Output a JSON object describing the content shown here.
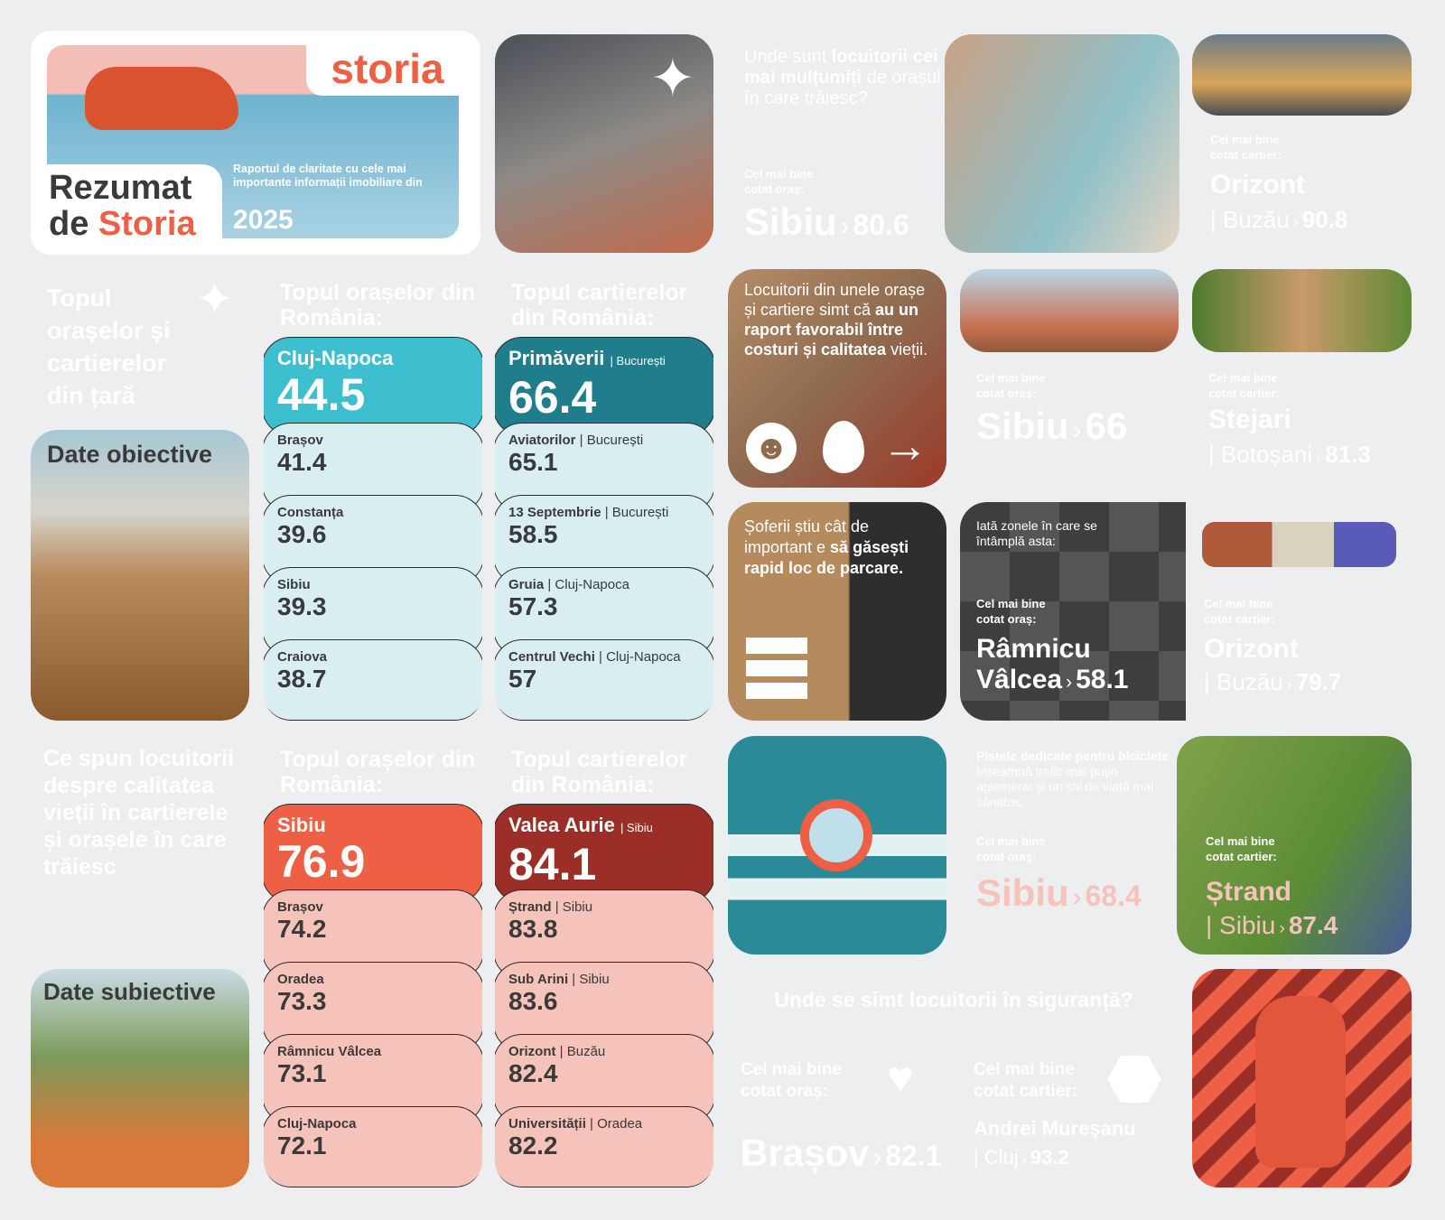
{
  "hero": {
    "brand": "storia",
    "title_line1": "Rezumat",
    "title_line2_a": "de ",
    "title_line2_b": "Storia",
    "subtitle": "Raportul de claritate cu cele mai importante informații imobiliare din",
    "year": "2025"
  },
  "colors": {
    "coral": "#ee6045",
    "dark_red": "#9b2f27",
    "teal": "#3ebfd0",
    "dark_teal": "#1f7d8c",
    "dark_gray": "#3e3e41",
    "light_teal": "#d8eef1",
    "light_pink": "#f6c3ba"
  },
  "happy": {
    "question_a": "Unde sunt ",
    "question_b": "locuitorii cei mai mulțumiți",
    "question_c": " de orașul în care trăiesc?",
    "city_label": "Cel mai bine cotat oraș:",
    "city": "Sibiu",
    "city_score": "80.6"
  },
  "happy_nb": {
    "label": "Cel mai bine cotat cartier:",
    "name": "Orizont",
    "city": "| Buzău",
    "score": "90.8"
  },
  "objective": {
    "title": "Topul orașelor și cartierelor din țară",
    "photo_label": "Date obiective",
    "cities": {
      "title": "Topul orașelor din România:",
      "items": [
        {
          "name": "Cluj-Napoca",
          "score": "44.5"
        },
        {
          "name": "Brașov",
          "score": "41.4"
        },
        {
          "name": "Constanța",
          "score": "39.6"
        },
        {
          "name": "Sibiu",
          "score": "39.3"
        },
        {
          "name": "Craiova",
          "score": "38.7"
        }
      ]
    },
    "neighborhoods": {
      "title": "Topul cartierelor din România:",
      "items": [
        {
          "name": "Primăverii",
          "city": "| București",
          "score": "66.4"
        },
        {
          "name": "Aviatorilor",
          "city": "| București",
          "score": "65.1"
        },
        {
          "name": "13 Septembrie",
          "city": "| București",
          "score": "58.5"
        },
        {
          "name": "Gruia",
          "city": "| Cluj-Napoca",
          "score": "57.3"
        },
        {
          "name": "Centrul Vechi",
          "city": "| Cluj-Napoca",
          "score": "57"
        }
      ]
    }
  },
  "cost": {
    "text_a": "Locuitorii din unele orașe și cartiere simt că ",
    "text_b": "au un raport favorabil între costuri și calitatea",
    "text_c": " vieții.",
    "city_label": "Cel mai bine cotat oraș:",
    "city": "Sibiu",
    "city_score": "66",
    "nb_label": "Cel mai bine cotat cartier:",
    "nb": "Stejari",
    "nb_city": "| Botoșani",
    "nb_score": "81.3"
  },
  "parking": {
    "text_a": "Șoferii știu cât de important e ",
    "text_b": "să găsești rapid loc de parcare.",
    "intro": "Iată zonele în care se întâmplă asta:",
    "city_label": "Cel mai bine cotat oraș:",
    "city_line1": "Râmnicu",
    "city_line2": "Vâlcea",
    "city_score": "58.1",
    "nb_label": "Cel mai bine cotat cartier:",
    "nb": "Orizont",
    "nb_city": "| Buzău",
    "nb_score": "79.7"
  },
  "subjective": {
    "title": "Ce spun locuitorii despre calitatea vieții în cartierele și orașele în care trăiesc",
    "photo_label": "Date subiective",
    "cities": {
      "title": "Topul orașelor din România:",
      "items": [
        {
          "name": "Sibiu",
          "score": "76.9"
        },
        {
          "name": "Brașov",
          "score": "74.2"
        },
        {
          "name": "Oradea",
          "score": "73.3"
        },
        {
          "name": "Râmnicu Vâlcea",
          "score": "73.1"
        },
        {
          "name": "Cluj-Napoca",
          "score": "72.1"
        }
      ]
    },
    "neighborhoods": {
      "title": "Topul cartierelor din România:",
      "items": [
        {
          "name": "Valea Aurie",
          "city": "| Sibiu",
          "score": "84.1"
        },
        {
          "name": "Ștrand",
          "city": "| Sibiu",
          "score": "83.8"
        },
        {
          "name": "Sub Arini",
          "city": "| Sibiu",
          "score": "83.6"
        },
        {
          "name": "Orizont",
          "city": "| Buzău",
          "score": "82.4"
        },
        {
          "name": "Universității",
          "city": "| Oradea",
          "score": "82.2"
        }
      ]
    }
  },
  "bike": {
    "text_a": "Pistele dedicate pentru biciclete",
    "text_b": " înseamnă trafic mai puțin aglomerat și un stil de viață mai sănătos.",
    "city_label": "Cel mai bine cotat oraș:",
    "city": "Sibiu",
    "city_score": "68.4",
    "nb_label": "Cel mai bine cotat cartier:",
    "nb": "Ștrand",
    "nb_city": "| Sibiu",
    "nb_score": "87.4"
  },
  "safety": {
    "question": "Unde se simt locuitorii în siguranță?",
    "city_label": "Cel mai bine cotat oraș:",
    "city": "Brașov",
    "city_score": "82.1",
    "nb_label": "Cel mai bine cotat cartier:",
    "nb": "Andrei Mureșanu",
    "nb_city": "| Cluj",
    "nb_score": "93.2"
  }
}
